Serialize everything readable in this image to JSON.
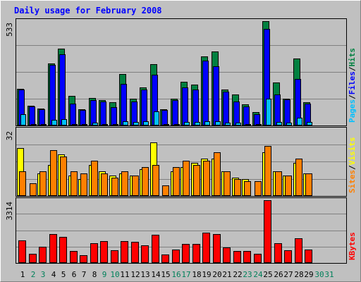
{
  "chart_data": [
    {
      "type": "bar",
      "panel": "hits",
      "title": "Daily usage for February 2008",
      "scale_label": "533",
      "ymax": 533,
      "categories": [
        "1",
        "2",
        "3",
        "4",
        "5",
        "6",
        "7",
        "8",
        "9",
        "10",
        "11",
        "12",
        "13",
        "14",
        "15",
        "16",
        "17",
        "18",
        "19",
        "20",
        "21",
        "22",
        "23",
        "24",
        "25",
        "26",
        "27",
        "28",
        "29",
        "30",
        "31"
      ],
      "weekend_days": [
        "2",
        "3",
        "9",
        "10",
        "16",
        "17",
        "23",
        "24",
        "30",
        "31"
      ],
      "legend": [
        {
          "label": "Pages",
          "color": "#00c0ff"
        },
        {
          "label": "Files",
          "color": "#0000ff"
        },
        {
          "label": "Hits",
          "color": "#008040"
        }
      ],
      "series": [
        {
          "name": "Hits",
          "color": "#008040",
          "values": [
            188,
            100,
            88,
            318,
            393,
            153,
            83,
            140,
            130,
            118,
            263,
            138,
            193,
            313,
            83,
            138,
            223,
            208,
            353,
            378,
            183,
            158,
            108,
            68,
            533,
            218,
            138,
            343,
            118,
            0,
            0
          ]
        },
        {
          "name": "Files",
          "color": "#0000ff",
          "values": [
            183,
            98,
            83,
            308,
            363,
            113,
            78,
            128,
            123,
            93,
            213,
            123,
            183,
            258,
            78,
            128,
            193,
            183,
            333,
            303,
            173,
            123,
            98,
            58,
            493,
            158,
            133,
            238,
            113,
            0,
            0
          ]
        },
        {
          "name": "Pages",
          "color": "#00c0ff",
          "values": [
            58,
            8,
            8,
            28,
            33,
            8,
            8,
            13,
            8,
            8,
            23,
            18,
            23,
            73,
            8,
            8,
            18,
            18,
            23,
            23,
            13,
            13,
            8,
            8,
            138,
            18,
            13,
            38,
            18,
            0,
            0
          ]
        }
      ]
    },
    {
      "type": "bar",
      "panel": "visits",
      "scale_label": "32",
      "ymax": 32,
      "legend": [
        {
          "label": "Sites",
          "color": "#ff8000"
        },
        {
          "label": "Visits",
          "color": "#ffff00"
        }
      ],
      "series": [
        {
          "name": "Visits",
          "color": "#ffff00",
          "values": [
            23,
            0,
            11,
            15,
            20,
            10,
            8,
            15,
            12,
            10,
            11,
            10,
            13,
            26,
            0,
            12,
            14,
            16,
            18,
            18,
            12,
            9,
            8,
            0,
            21,
            12,
            10,
            16,
            11,
            0,
            0
          ]
        },
        {
          "name": "Sites",
          "color": "#ff8000",
          "values": [
            12,
            6,
            12,
            22,
            19,
            12,
            11,
            17,
            11,
            9,
            12,
            10,
            14,
            15,
            5,
            14,
            17,
            15,
            17,
            21,
            12,
            8,
            7,
            7,
            24,
            12,
            10,
            18,
            11,
            0,
            0
          ]
        }
      ]
    },
    {
      "type": "bar",
      "panel": "kbytes",
      "scale_label": "3314",
      "ymax": 3314,
      "legend": [
        {
          "label": "KBytes",
          "color": "#ff0000"
        }
      ],
      "series": [
        {
          "name": "KBytes",
          "color": "#ff0000",
          "values": [
            1180,
            500,
            850,
            1520,
            1390,
            620,
            420,
            1030,
            1140,
            680,
            1150,
            1110,
            940,
            1490,
            430,
            720,
            1000,
            990,
            1610,
            1540,
            830,
            630,
            650,
            480,
            3314,
            1030,
            680,
            1290,
            700,
            0,
            0
          ]
        }
      ]
    }
  ]
}
